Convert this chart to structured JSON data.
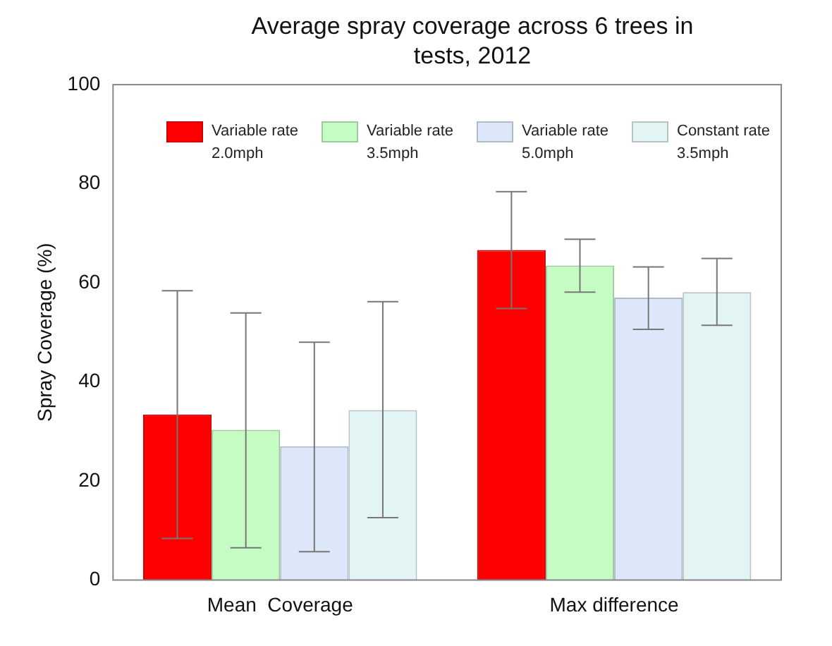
{
  "chart_data": {
    "type": "bar",
    "title": "Average spray coverage across 6 trees in tests, 2012",
    "ylabel": "Spray Coverage (%)",
    "categories": [
      "Mean  Coverage",
      "Max difference"
    ],
    "series": [
      {
        "name": "Variable rate 2.0mph",
        "color": "#ff0000",
        "values": [
          33.4,
          66.6
        ],
        "errors": [
          [
            8.4,
            58.4
          ],
          [
            54.8,
            78.4
          ]
        ]
      },
      {
        "name": "Variable rate 3.5mph",
        "color": "#c4fcc4",
        "values": [
          30.3,
          63.5
        ],
        "errors": [
          [
            6.5,
            53.9
          ],
          [
            58.1,
            68.8
          ]
        ]
      },
      {
        "name": "Variable rate 5.0mph",
        "color": "#dce8fa",
        "values": [
          27.0,
          57.0
        ],
        "errors": [
          [
            5.7,
            48.0
          ],
          [
            50.6,
            63.2
          ]
        ]
      },
      {
        "name": "Constant rate 3.5mph",
        "color": "#e2f4f4",
        "values": [
          34.3,
          58.1
        ],
        "errors": [
          [
            12.6,
            56.2
          ],
          [
            51.4,
            64.9
          ]
        ]
      }
    ],
    "ylim": [
      0,
      100
    ],
    "yticks": [
      0,
      20,
      40,
      60,
      80,
      100
    ],
    "grid": false,
    "legend": "top"
  }
}
